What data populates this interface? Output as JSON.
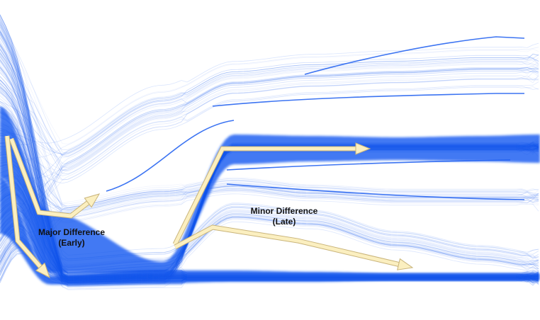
{
  "figure": {
    "background": "#ffffff",
    "line_color": "#1a5cf0",
    "arrow_fill": "#fbefc0",
    "arrow_stroke": "#c9b47a",
    "label_color": "#111111"
  },
  "annotations": {
    "major": {
      "line1": "Major Difference",
      "line2": "(Early)"
    },
    "minor": {
      "line1": "Minor Difference",
      "line2": "(Late)"
    }
  },
  "arrows": [
    {
      "name": "early-down-arrow",
      "label_ref": "major"
    },
    {
      "name": "early-dip-arrow",
      "label_ref": "major"
    },
    {
      "name": "late-up-arrow",
      "label_ref": "minor"
    },
    {
      "name": "late-down-arrow",
      "label_ref": "minor"
    }
  ]
}
